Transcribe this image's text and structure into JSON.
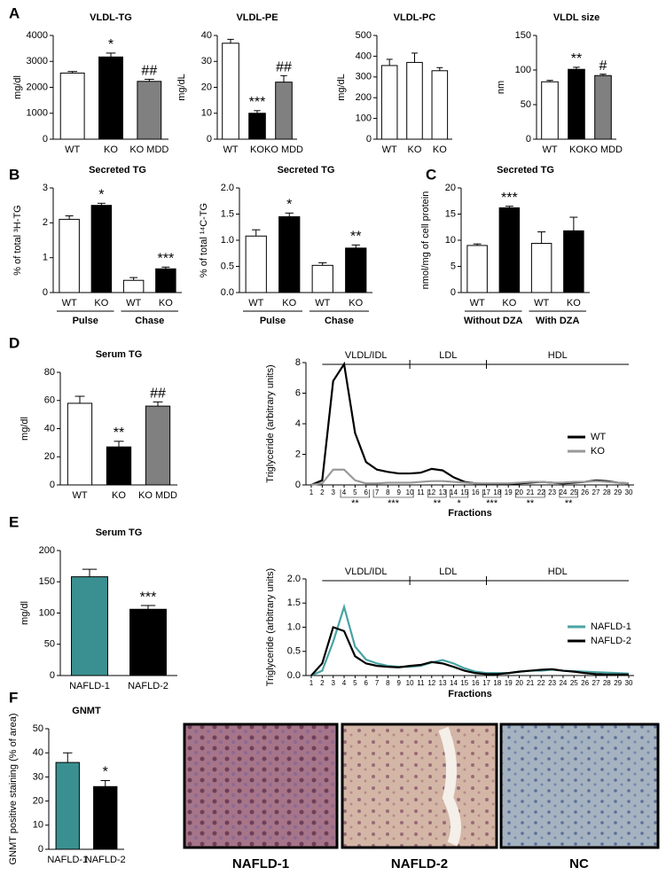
{
  "chart_data": [
    {
      "type": "bar",
      "panel": "A",
      "title": "VLDL-TG",
      "y_label": "mg/dl",
      "categories": [
        "WT",
        "KO",
        "KO MDD"
      ],
      "colors": [
        "#ffffff",
        "#000000",
        "#808080"
      ],
      "values": [
        2550,
        3170,
        2230
      ],
      "errors": [
        60,
        150,
        80
      ],
      "annotations": [
        null,
        "*",
        "##"
      ],
      "ylim": [
        0,
        4000
      ],
      "yticks": [
        0,
        1000,
        2000,
        3000,
        4000
      ]
    },
    {
      "type": "bar",
      "title": "VLDL-PE",
      "y_label": "mg/dL",
      "categories": [
        "WT",
        "KO",
        "KO MDD"
      ],
      "colors": [
        "#ffffff",
        "#000000",
        "#808080"
      ],
      "values": [
        37,
        10,
        22
      ],
      "errors": [
        1.5,
        1,
        2.5
      ],
      "annotations": [
        null,
        "***",
        "##"
      ],
      "ylim": [
        0,
        40
      ],
      "yticks": [
        0,
        10,
        20,
        30,
        40
      ]
    },
    {
      "type": "bar",
      "title": "VLDL-PC",
      "y_label": "mg/dL",
      "categories": [
        "WT",
        "KO",
        "KO"
      ],
      "colors": [
        "#ffffff",
        "#ffffff",
        "#ffffff"
      ],
      "values": [
        355,
        370,
        330
      ],
      "errors": [
        30,
        45,
        15
      ],
      "annotations": [
        null,
        null,
        null
      ],
      "ylim": [
        0,
        500
      ],
      "yticks": [
        0,
        100,
        200,
        300,
        400,
        500
      ]
    },
    {
      "type": "bar",
      "title": "VLDL size",
      "y_label": "nm",
      "categories": [
        "WT",
        "KO",
        "KO MDD"
      ],
      "colors": [
        "#ffffff",
        "#000000",
        "#808080"
      ],
      "values": [
        83,
        101,
        92
      ],
      "errors": [
        2,
        3,
        2
      ],
      "annotations": [
        null,
        "**",
        "#"
      ],
      "ylim": [
        0,
        150
      ],
      "yticks": [
        0,
        50,
        100,
        150
      ]
    },
    {
      "type": "bar",
      "panel": "B",
      "title": "Secreted TG",
      "y_label": "% of total ³H-TG",
      "categories": [
        "WT",
        "KO",
        "WT",
        "KO"
      ],
      "colors": [
        "#ffffff",
        "#000000",
        "#ffffff",
        "#000000"
      ],
      "values": [
        2.1,
        2.5,
        0.35,
        0.68
      ],
      "errors": [
        0.1,
        0.06,
        0.08,
        0.05
      ],
      "annotations": [
        null,
        "*",
        null,
        "***"
      ],
      "groups": [
        {
          "label": "Pulse"
        },
        {
          "label": "Chase"
        }
      ],
      "ylim": [
        0,
        3
      ],
      "yticks": [
        0,
        1,
        2,
        3
      ]
    },
    {
      "type": "bar",
      "title": "Secreted TG",
      "y_label": "% of total ¹⁴C-TG",
      "categories": [
        "WT",
        "KO",
        "WT",
        "KO"
      ],
      "colors": [
        "#ffffff",
        "#000000",
        "#ffffff",
        "#000000"
      ],
      "values": [
        1.08,
        1.45,
        0.52,
        0.85
      ],
      "errors": [
        0.12,
        0.07,
        0.05,
        0.06
      ],
      "annotations": [
        null,
        "*",
        null,
        "**"
      ],
      "groups": [
        {
          "label": "Pulse"
        },
        {
          "label": "Chase"
        }
      ],
      "ylim": [
        0,
        2
      ],
      "yticks": [
        {
          "value": 0,
          "label": "0.0"
        },
        {
          "value": 0.5,
          "label": "0.5"
        },
        {
          "value": 1,
          "label": "1.0"
        },
        {
          "value": 1.5,
          "label": "1.5"
        },
        {
          "value": 2,
          "label": "2.0"
        }
      ]
    },
    {
      "type": "bar",
      "panel": "C",
      "title": "Secreted TG",
      "y_label": "nmol/mg of cell protein",
      "categories": [
        "WT",
        "KO",
        "WT",
        "KO"
      ],
      "colors": [
        "#ffffff",
        "#000000",
        "#ffffff",
        "#000000"
      ],
      "values": [
        9,
        16.2,
        9.4,
        11.8
      ],
      "errors": [
        0.3,
        0.3,
        2.2,
        2.6
      ],
      "annotations": [
        null,
        "***",
        null,
        null
      ],
      "groups": [
        {
          "label": "Without DZA"
        },
        {
          "label": "With DZA"
        }
      ],
      "ylim": [
        0,
        20
      ],
      "yticks": [
        0,
        5,
        10,
        15,
        20
      ]
    },
    {
      "type": "bar",
      "panel": "D",
      "title": "Serum TG",
      "y_label": "mg/dl",
      "categories": [
        "WT",
        "KO",
        "KO MDD"
      ],
      "colors": [
        "#ffffff",
        "#000000",
        "#808080"
      ],
      "values": [
        58,
        27,
        56
      ],
      "errors": [
        5,
        4,
        3
      ],
      "annotations": [
        null,
        "**",
        "##"
      ],
      "ylim": [
        0,
        80
      ],
      "yticks": [
        0,
        20,
        40,
        60,
        80
      ]
    },
    {
      "type": "line",
      "y_label": "Triglyceride (arbitrary units)",
      "x_label": "Fractions",
      "x": [
        1,
        2,
        3,
        4,
        5,
        6,
        7,
        8,
        9,
        10,
        11,
        12,
        13,
        14,
        15,
        16,
        17,
        18,
        19,
        20,
        21,
        22,
        23,
        24,
        25,
        26,
        27,
        28,
        29,
        30
      ],
      "series": [
        {
          "name": "WT",
          "color": "#000000",
          "values": [
            0,
            0.3,
            6.8,
            7.9,
            3.4,
            1.5,
            1.0,
            0.85,
            0.75,
            0.75,
            0.8,
            1.05,
            0.95,
            0.5,
            0.2,
            0.1,
            0.05,
            0.05,
            0.05,
            0.1,
            0.15,
            0.2,
            0.15,
            0.1,
            0.15,
            0.2,
            0.3,
            0.25,
            0.15,
            0.1
          ]
        },
        {
          "name": "KO",
          "color": "#999999",
          "values": [
            0,
            0.1,
            1.0,
            1.0,
            0.3,
            0.1,
            0.1,
            0.15,
            0.15,
            0.15,
            0.2,
            0.25,
            0.25,
            0.2,
            0.15,
            0.1,
            0.1,
            0.1,
            0.1,
            0.15,
            0.2,
            0.2,
            0.15,
            0.15,
            0.2,
            0.2,
            0.25,
            0.2,
            0.15,
            0.1
          ]
        }
      ],
      "regions": [
        {
          "label": "VLDL/IDL",
          "start": 2,
          "end": 10
        },
        {
          "label": "LDL",
          "start": 10,
          "end": 17
        },
        {
          "label": "HDL",
          "start": 17,
          "end": 30
        }
      ],
      "significance": [
        {
          "label": "**",
          "start": 4,
          "end": 6
        },
        {
          "label": "***",
          "start": 7,
          "end": 10
        },
        {
          "label": "**",
          "start": 12,
          "end": 13
        },
        {
          "label": "*",
          "start": 14,
          "end": 15
        },
        {
          "label": "***",
          "start": 17,
          "end": 18
        },
        {
          "label": "**",
          "start": 20,
          "end": 22
        },
        {
          "label": "**",
          "start": 24,
          "end": 25
        }
      ],
      "legend": "right",
      "xlim": [
        1,
        30
      ],
      "xticks": [
        1,
        2,
        3,
        4,
        5,
        6,
        7,
        8,
        9,
        10,
        11,
        12,
        13,
        14,
        15,
        16,
        17,
        18,
        19,
        20,
        21,
        22,
        23,
        24,
        25,
        26,
        27,
        28,
        29,
        30
      ],
      "ylim": [
        0,
        8
      ],
      "yticks": [
        0,
        2,
        4,
        6,
        8
      ]
    },
    {
      "type": "bar",
      "panel": "E",
      "title": "Serum TG",
      "y_label": "mg/dl",
      "categories": [
        "NAFLD-1",
        "NAFLD-2"
      ],
      "colors": [
        "#3a9090",
        "#000000"
      ],
      "values": [
        158,
        106
      ],
      "errors": [
        12,
        6
      ],
      "annotations": [
        null,
        "***"
      ],
      "ylim": [
        0,
        200
      ],
      "yticks": [
        0,
        50,
        100,
        150,
        200
      ]
    },
    {
      "type": "line",
      "y_label": "Triglyceride (arbitrary units)",
      "x_label": "Fractions",
      "x": [
        1,
        2,
        3,
        4,
        5,
        6,
        7,
        8,
        9,
        10,
        11,
        12,
        13,
        14,
        15,
        16,
        17,
        18,
        19,
        20,
        21,
        22,
        23,
        24,
        25,
        26,
        27,
        28,
        29,
        30
      ],
      "series": [
        {
          "name": "NAFLD-1",
          "color": "#4aa3a3",
          "values": [
            0,
            0.1,
            0.7,
            1.42,
            0.6,
            0.33,
            0.25,
            0.2,
            0.18,
            0.18,
            0.2,
            0.27,
            0.32,
            0.25,
            0.15,
            0.08,
            0.05,
            0.05,
            0.05,
            0.08,
            0.1,
            0.1,
            0.12,
            0.1,
            0.09,
            0.08,
            0.07,
            0.06,
            0.05,
            0.04
          ]
        },
        {
          "name": "NAFLD-2",
          "color": "#000000",
          "values": [
            0,
            0.25,
            1.0,
            0.92,
            0.4,
            0.25,
            0.2,
            0.18,
            0.17,
            0.2,
            0.22,
            0.28,
            0.25,
            0.18,
            0.1,
            0.05,
            0.03,
            0.03,
            0.05,
            0.08,
            0.1,
            0.12,
            0.13,
            0.1,
            0.08,
            0.05,
            0.03,
            0.02,
            0.02,
            0.02
          ]
        }
      ],
      "regions": [
        {
          "label": "VLDL/IDL",
          "start": 2,
          "end": 10
        },
        {
          "label": "LDL",
          "start": 10,
          "end": 17
        },
        {
          "label": "HDL",
          "start": 17,
          "end": 30
        }
      ],
      "legend": "right",
      "xlim": [
        1,
        30
      ],
      "xticks": [
        1,
        2,
        3,
        4,
        5,
        6,
        7,
        8,
        9,
        10,
        11,
        12,
        13,
        14,
        15,
        16,
        17,
        18,
        19,
        20,
        21,
        22,
        23,
        24,
        25,
        26,
        27,
        28,
        29,
        30
      ],
      "ylim": [
        0,
        2
      ],
      "yticks": [
        {
          "value": 0,
          "label": "0.0"
        },
        {
          "value": 0.5,
          "label": "0.5"
        },
        {
          "value": 1,
          "label": "1.0"
        },
        {
          "value": 1.5,
          "label": "1.5"
        },
        {
          "value": 2,
          "label": "2.0"
        }
      ]
    },
    {
      "type": "bar",
      "panel": "F",
      "title": "GNMT",
      "y_label": "GNMT positive staining (% of area)",
      "categories": [
        "NAFLD-1",
        "NAFLD-2"
      ],
      "colors": [
        "#3a9090",
        "#000000"
      ],
      "values": [
        36,
        26
      ],
      "errors": [
        4,
        2.5
      ],
      "annotations": [
        null,
        "*"
      ],
      "ylim": [
        0,
        50
      ],
      "yticks": [
        0,
        10,
        20,
        30,
        40,
        50
      ]
    }
  ],
  "images": [
    {
      "caption": "NAFLD-1"
    },
    {
      "caption": "NAFLD-2"
    },
    {
      "caption": "NC"
    }
  ]
}
